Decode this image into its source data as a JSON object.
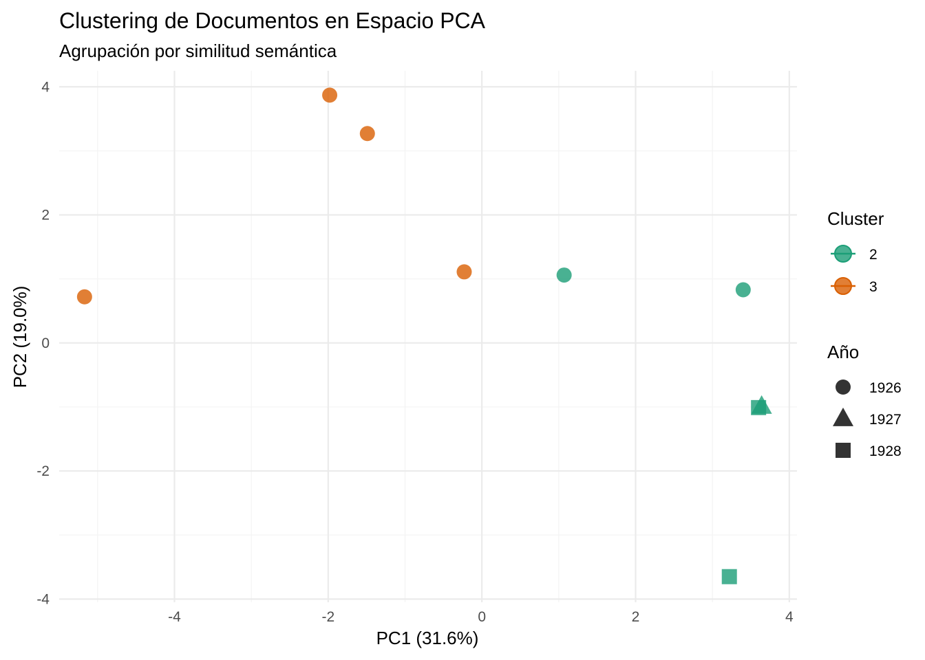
{
  "chart_data": {
    "type": "scatter",
    "title": "Clustering de Documentos en Espacio PCA",
    "subtitle": "Agrupación por similitud semántica",
    "xlabel": "PC1 (31.6%)",
    "ylabel": "PC2 (19.0%)",
    "xlim": [
      -5.5,
      4.1
    ],
    "ylim": [
      -4.05,
      4.25
    ],
    "x_ticks": [
      -4,
      -2,
      0,
      2,
      4
    ],
    "y_ticks": [
      -4,
      -2,
      0,
      2,
      4
    ],
    "grid": true,
    "legend_position": "right",
    "color_legend": {
      "title": "Cluster",
      "entries": [
        {
          "label": "2",
          "color": "#1b9e77"
        },
        {
          "label": "3",
          "color": "#d95f02"
        }
      ]
    },
    "shape_legend": {
      "title": "Año",
      "entries": [
        {
          "label": "1926",
          "shape": "circle"
        },
        {
          "label": "1927",
          "shape": "triangle"
        },
        {
          "label": "1928",
          "shape": "square"
        }
      ]
    },
    "points": [
      {
        "x": -1.98,
        "y": 3.87,
        "cluster": "3",
        "year": "1926"
      },
      {
        "x": -1.49,
        "y": 3.27,
        "cluster": "3",
        "year": "1926"
      },
      {
        "x": -0.23,
        "y": 1.11,
        "cluster": "3",
        "year": "1926"
      },
      {
        "x": -5.17,
        "y": 0.72,
        "cluster": "3",
        "year": "1926"
      },
      {
        "x": 1.07,
        "y": 1.06,
        "cluster": "2",
        "year": "1926"
      },
      {
        "x": 3.4,
        "y": 0.83,
        "cluster": "2",
        "year": "1926"
      },
      {
        "x": 3.64,
        "y": -0.99,
        "cluster": "2",
        "year": "1927"
      },
      {
        "x": 3.6,
        "y": -1.01,
        "cluster": "2",
        "year": "1928"
      },
      {
        "x": 3.22,
        "y": -3.65,
        "cluster": "2",
        "year": "1928"
      }
    ]
  }
}
